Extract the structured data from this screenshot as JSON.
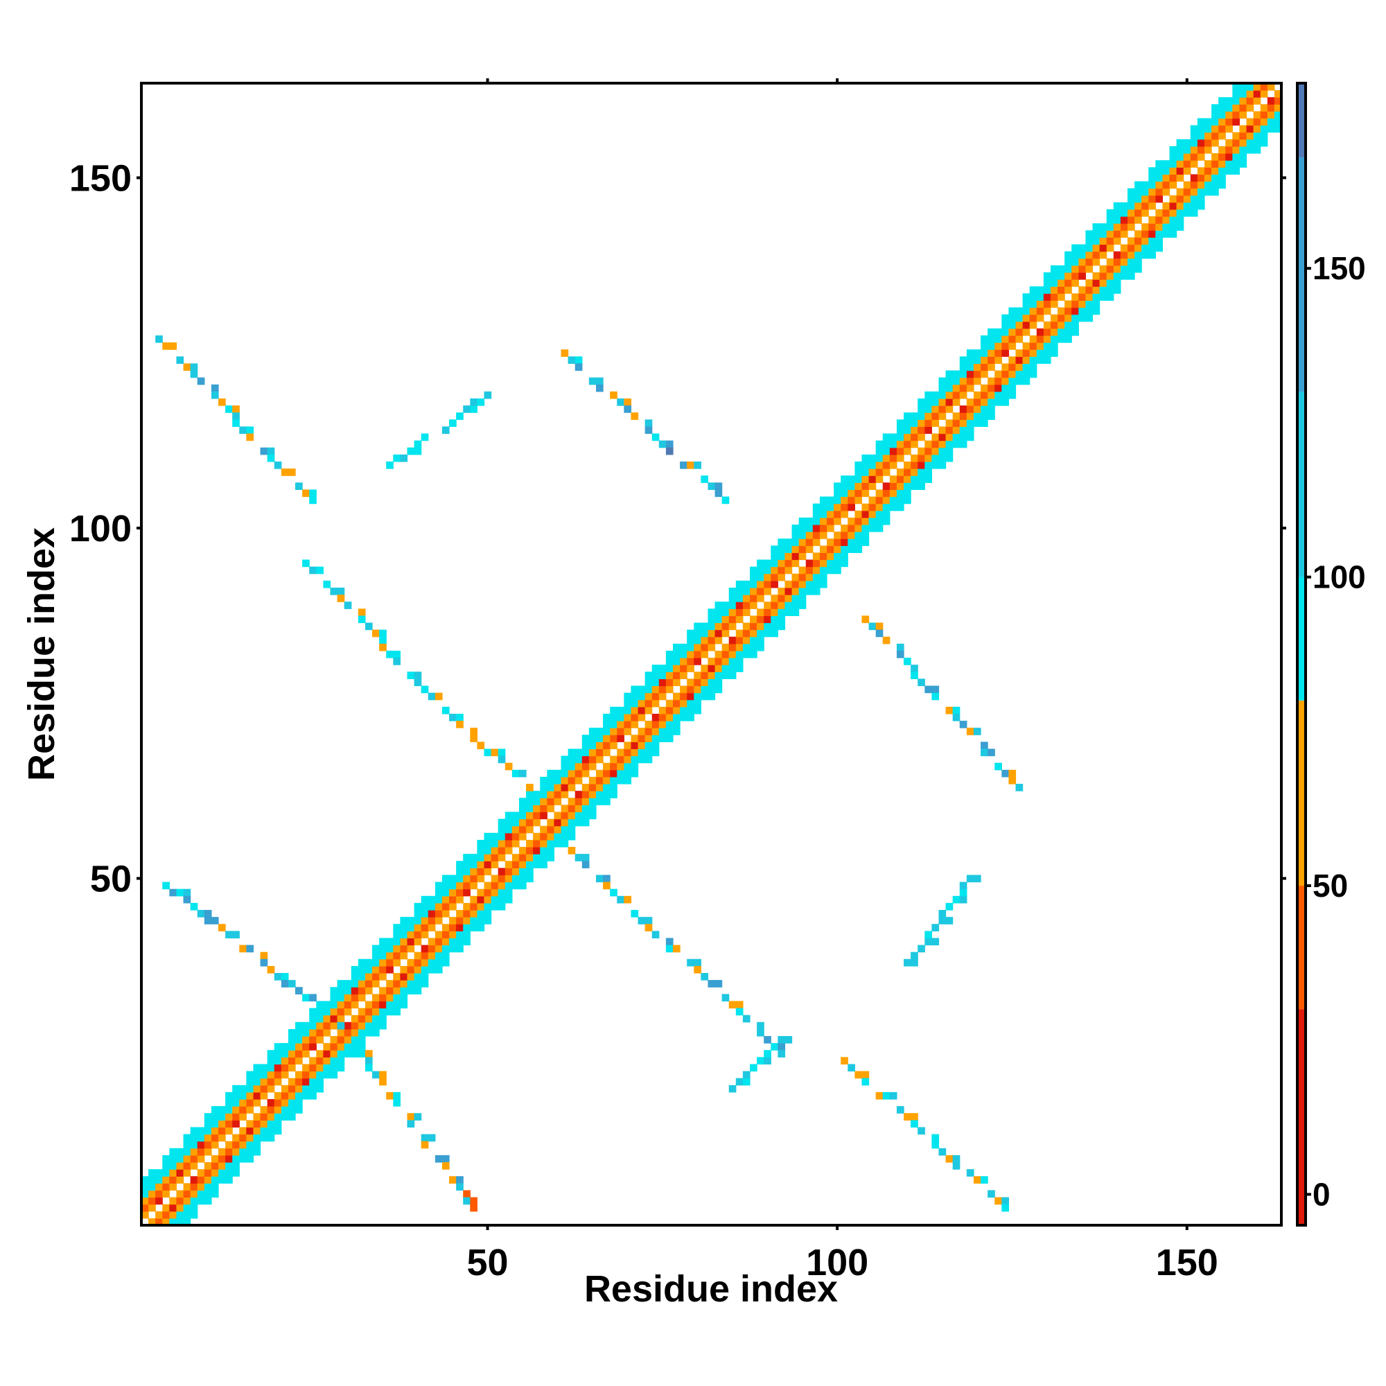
{
  "chart_data": {
    "type": "heatmap",
    "title": "",
    "xlabel": "Residue index",
    "ylabel": "Residue index",
    "xlim": [
      1,
      163
    ],
    "ylim": [
      1,
      163
    ],
    "xticks": [
      50,
      100,
      150
    ],
    "yticks": [
      50,
      100,
      150
    ],
    "grid": false,
    "colorbar": {
      "range": [
        -5,
        180
      ],
      "ticks": [
        0,
        50,
        100,
        150
      ],
      "bands": [
        {
          "from": -5,
          "to": 30,
          "color": "#e01a0b"
        },
        {
          "from": 30,
          "to": 50,
          "color": "#ff5a00"
        },
        {
          "from": 50,
          "to": 80,
          "color": "#ffa200"
        },
        {
          "from": 80,
          "to": 100,
          "color": "#00e5ee"
        },
        {
          "from": 100,
          "to": 130,
          "color": "#1ec8e0"
        },
        {
          "from": 130,
          "to": 168,
          "color": "#3a9fd1"
        },
        {
          "from": 168,
          "to": 180,
          "color": "#5078b4"
        }
      ]
    },
    "diagonal": {
      "from": 1,
      "to": 163,
      "half_width": 6
    },
    "contact_segments": [
      {
        "start": [
          3,
          127
        ],
        "end": [
          25,
          104
        ],
        "min": 60,
        "max": 140
      },
      {
        "start": [
          24,
          95
        ],
        "end": [
          45,
          73
        ],
        "min": 55,
        "max": 130
      },
      {
        "start": [
          46,
          72
        ],
        "end": [
          56,
          63
        ],
        "min": 55,
        "max": 110
      },
      {
        "start": [
          36,
          109
        ],
        "end": [
          50,
          119
        ],
        "min": 85,
        "max": 130
      },
      {
        "start": [
          61,
          125
        ],
        "end": [
          84,
          104
        ],
        "min": 55,
        "max": 170
      },
      {
        "start": [
          104,
          87
        ],
        "end": [
          126,
          63
        ],
        "min": 55,
        "max": 170
      },
      {
        "start": [
          3,
          50
        ],
        "end": [
          29,
          29
        ],
        "min": 55,
        "max": 165
      },
      {
        "start": [
          29,
          29
        ],
        "end": [
          48,
          3
        ],
        "min": 40,
        "max": 140
      },
      {
        "start": [
          62,
          54
        ],
        "end": [
          92,
          25
        ],
        "min": 55,
        "max": 140
      },
      {
        "start": [
          85,
          20
        ],
        "end": [
          92,
          27
        ],
        "min": 85,
        "max": 130
      },
      {
        "start": [
          101,
          24
        ],
        "end": [
          124,
          3
        ],
        "min": 55,
        "max": 130
      },
      {
        "start": [
          109,
          36
        ],
        "end": [
          119,
          50
        ],
        "min": 85,
        "max": 125
      }
    ]
  }
}
